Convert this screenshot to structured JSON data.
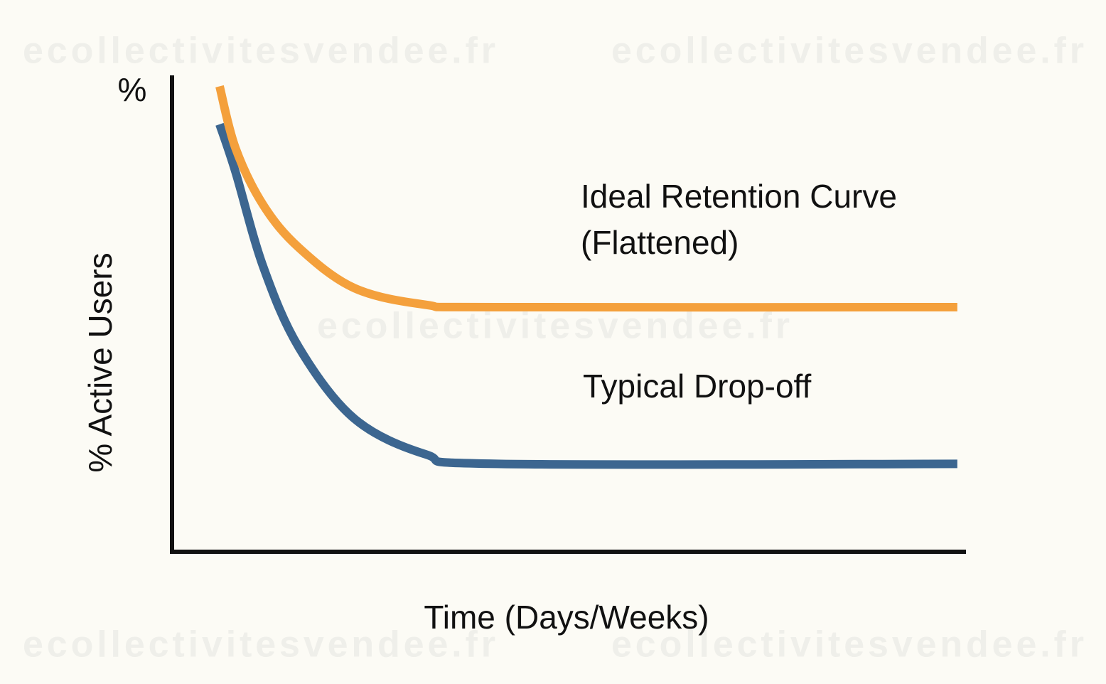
{
  "chart_data": {
    "type": "line",
    "watermark": "ecollectivitesvendee.fr",
    "ylabel_unit": "%",
    "ylabel": "% Active Users",
    "xlabel": "Time (Days/Weeks)",
    "x": [
      6,
      8,
      11.5,
      16,
      23,
      32,
      41,
      99
    ],
    "xlim": [
      0,
      100
    ],
    "ylim": [
      0,
      100
    ],
    "series": [
      {
        "labels": [
          "Ideal Retention Curve",
          "(Flattened)"
        ],
        "color": "#f4a03c",
        "values": [
          98,
          85,
          73,
          64,
          55.5,
          52,
          51.5,
          51.5
        ]
      },
      {
        "labels": [
          "Typical Drop-off"
        ],
        "color": "#3c6690",
        "values": [
          90,
          80,
          60,
          43,
          28,
          20.5,
          18.5,
          18.5
        ]
      }
    ]
  }
}
